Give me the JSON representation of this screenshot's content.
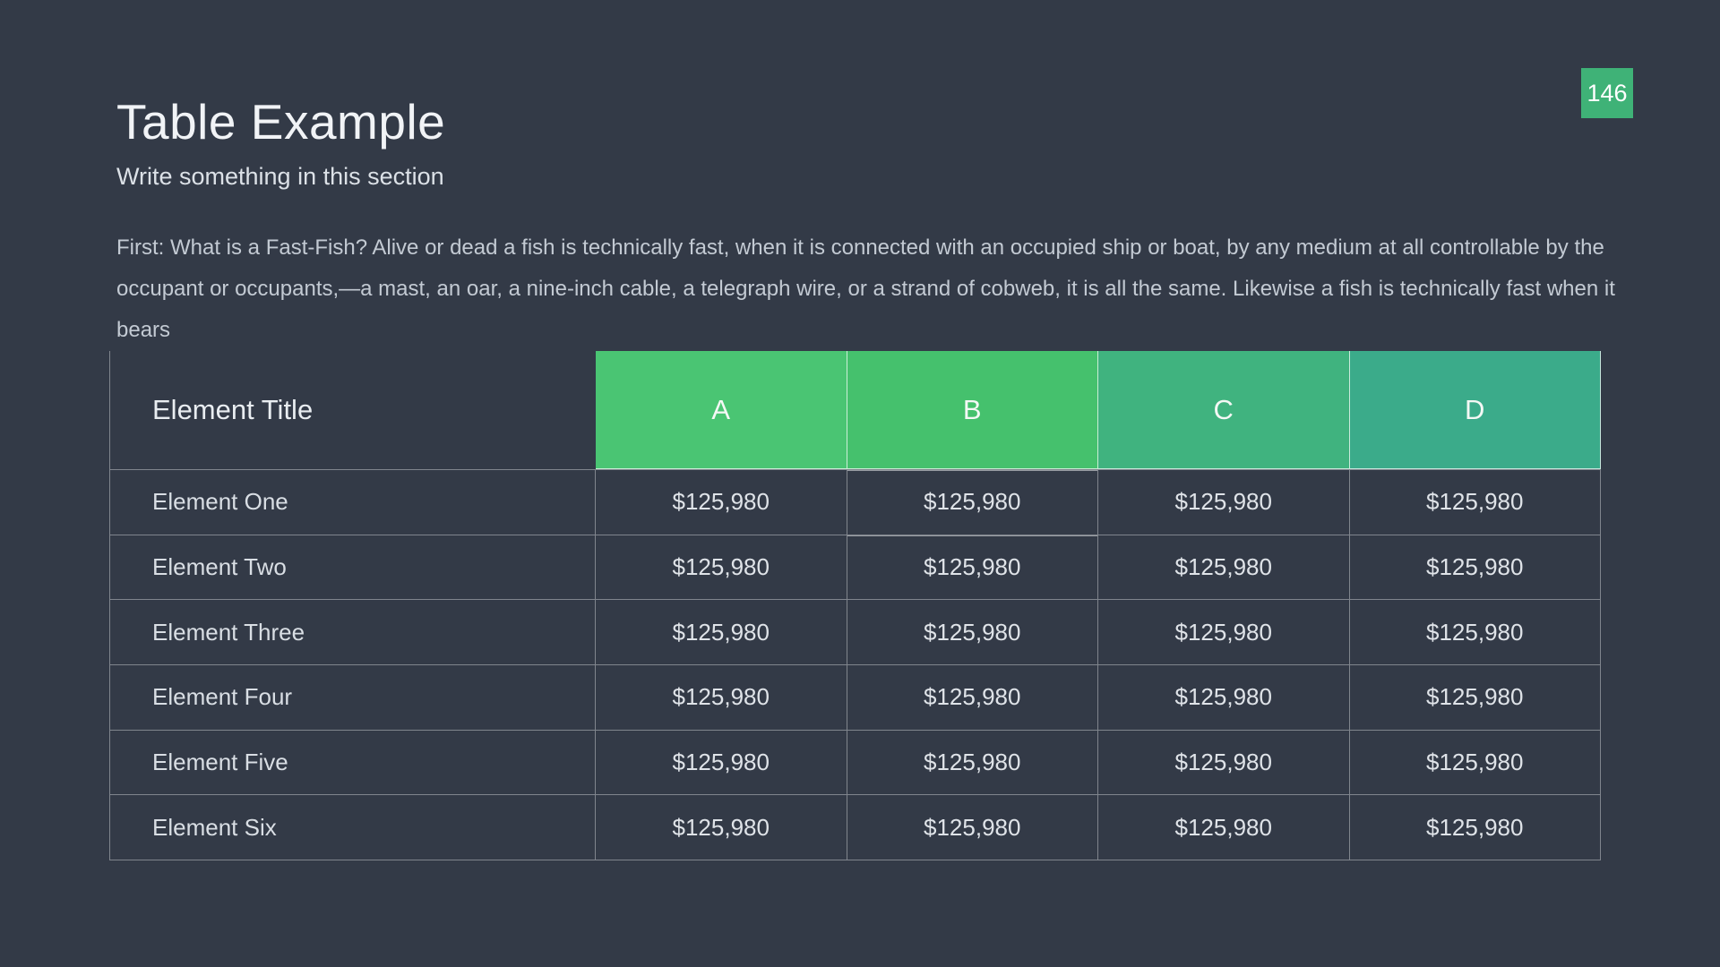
{
  "slide": {
    "background": "#333a47",
    "page_badge": {
      "label": "146",
      "color": "#3fb277"
    },
    "title": "Table Example",
    "subtitle": "Write something in this section",
    "body_text": "First: What is a Fast-Fish? Alive or dead a fish is technically fast, when it is connected with an occupied ship or boat, by any medium at all controllable by the occupant or occupants,—a mast, an oar, a nine-inch cable, a telegraph wire, or a strand of cobweb, it is all the same. Likewise a fish is technically fast when it bears",
    "table": {
      "row_header_label": "Element Title",
      "columns": [
        {
          "label": "A",
          "color": "#4ac573"
        },
        {
          "label": "B",
          "color": "#45c16d"
        },
        {
          "label": "C",
          "color": "#40b37f"
        },
        {
          "label": "D",
          "color": "#3bab8a"
        }
      ],
      "rows": [
        {
          "label": "Element One",
          "values": [
            "$125,980",
            "$125,980",
            "$125,980",
            "$125,980"
          ]
        },
        {
          "label": "Element Two",
          "values": [
            "$125,980",
            "$125,980",
            "$125,980",
            "$125,980"
          ]
        },
        {
          "label": "Element Three",
          "values": [
            "$125,980",
            "$125,980",
            "$125,980",
            "$125,980"
          ]
        },
        {
          "label": "Element Four",
          "values": [
            "$125,980",
            "$125,980",
            "$125,980",
            "$125,980"
          ]
        },
        {
          "label": "Element Five",
          "values": [
            "$125,980",
            "$125,980",
            "$125,980",
            "$125,980"
          ]
        },
        {
          "label": "Element Six",
          "values": [
            "$125,980",
            "$125,980",
            "$125,980",
            "$125,980"
          ]
        }
      ]
    }
  }
}
